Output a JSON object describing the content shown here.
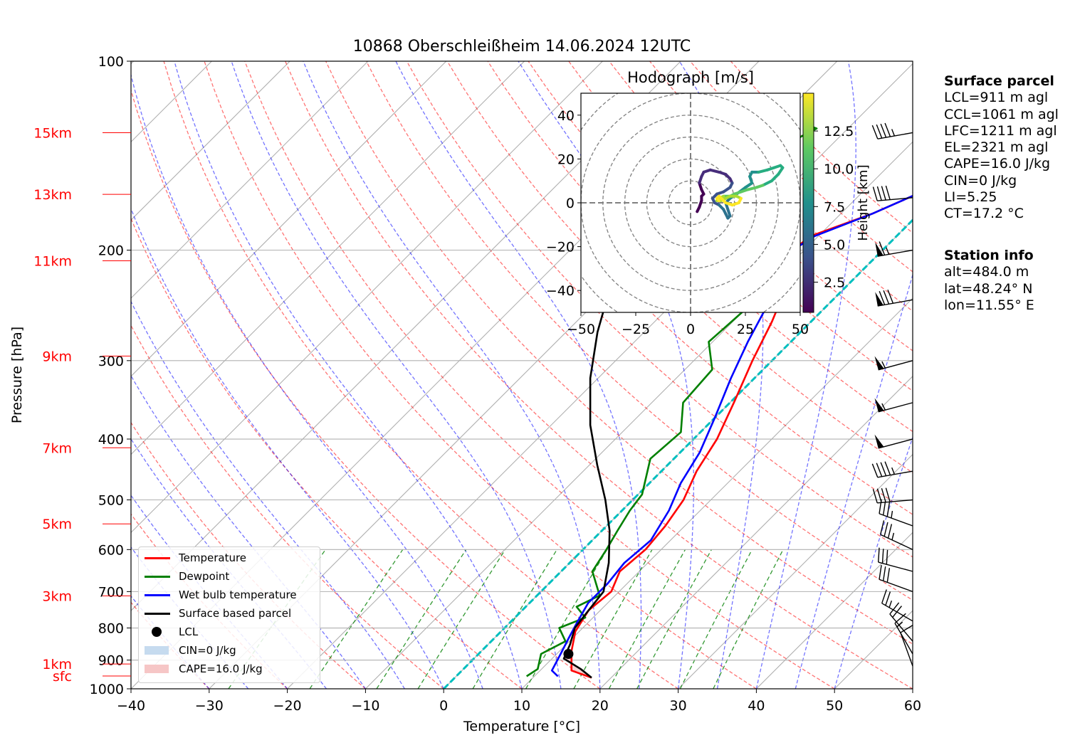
{
  "title": "10868 Oberschleißheim 14.06.2024 12UTC",
  "chart_data": {
    "type": "line",
    "xlabel": "Temperature [°C]",
    "ylabel": "Pressure [hPa]",
    "xlim": [
      -40,
      60
    ],
    "ylim": [
      1000,
      100
    ],
    "y_scale": "log",
    "x_ticks": [
      "−40",
      "−30",
      "−20",
      "−10",
      "0",
      "10",
      "20",
      "30",
      "40",
      "50",
      "60"
    ],
    "y_ticks": [
      {
        "p": 100,
        "label": "100"
      },
      {
        "p": 200,
        "label": "200"
      },
      {
        "p": 300,
        "label": "300"
      },
      {
        "p": 400,
        "label": "400"
      },
      {
        "p": 500,
        "label": "500"
      },
      {
        "p": 600,
        "label": "600"
      },
      {
        "p": 700,
        "label": "700"
      },
      {
        "p": 800,
        "label": "800"
      },
      {
        "p": 900,
        "label": "900"
      },
      {
        "p": 1000,
        "label": "1000"
      }
    ],
    "height_labels": [
      {
        "label": "15km",
        "p": 130
      },
      {
        "label": "13km",
        "p": 163
      },
      {
        "label": "11km",
        "p": 208
      },
      {
        "label": "9km",
        "p": 295
      },
      {
        "label": "7km",
        "p": 413
      },
      {
        "label": "5km",
        "p": 546
      },
      {
        "label": "3km",
        "p": 711
      },
      {
        "label": "1km",
        "p": 913
      },
      {
        "label": "sfc",
        "p": 954
      }
    ],
    "grid": true,
    "series": [
      {
        "name": "Temperature",
        "color": "#ff0000",
        "points": [
          [
            17.5,
            960
          ],
          [
            14,
            935
          ],
          [
            11.5,
            870
          ],
          [
            9.5,
            810
          ],
          [
            8.5,
            750
          ],
          [
            9,
            700
          ],
          [
            7.5,
            650
          ],
          [
            8,
            600
          ],
          [
            7.5,
            550
          ],
          [
            6.5,
            500
          ],
          [
            4.5,
            450
          ],
          [
            3,
            400
          ],
          [
            0.5,
            350
          ],
          [
            -2.5,
            300
          ],
          [
            -5,
            260
          ],
          [
            -7.5,
            230
          ],
          [
            -11.5,
            200
          ],
          [
            -11,
            190
          ],
          [
            -6,
            175
          ],
          [
            -2,
            160
          ],
          [
            2,
            145
          ],
          [
            4,
            138
          ],
          [
            5.5,
            133
          ],
          [
            6.5,
            128
          ],
          [
            8,
            120
          ]
        ]
      },
      {
        "name": "Dewpoint",
        "color": "#008000",
        "points": [
          [
            9,
            955
          ],
          [
            9.5,
            930
          ],
          [
            8,
            880
          ],
          [
            9.5,
            840
          ],
          [
            7,
            800
          ],
          [
            9,
            770
          ],
          [
            6.5,
            740
          ],
          [
            8,
            710
          ],
          [
            4,
            650
          ],
          [
            3,
            600
          ],
          [
            2,
            560
          ],
          [
            1,
            520
          ],
          [
            0.5,
            490
          ],
          [
            -3,
            430
          ],
          [
            -2.5,
            390
          ],
          [
            -6,
            350
          ],
          [
            -6.5,
            310
          ],
          [
            -10.5,
            280
          ],
          [
            -10,
            250
          ],
          [
            -13,
            225
          ],
          [
            -17,
            210
          ],
          [
            -18,
            200
          ],
          [
            -24,
            190
          ],
          [
            -28.5,
            175
          ],
          [
            -32,
            160
          ],
          [
            -30,
            150
          ],
          [
            -25,
            140
          ],
          [
            -25,
            132
          ],
          [
            -24,
            128
          ],
          [
            -25,
            127
          ]
        ]
      },
      {
        "name": "Wet bulb temperature",
        "color": "#0000ff",
        "points": [
          [
            13,
            955
          ],
          [
            11.5,
            935
          ],
          [
            10.5,
            880
          ],
          [
            9.5,
            830
          ],
          [
            8.5,
            780
          ],
          [
            7.5,
            730
          ],
          [
            7.5,
            680
          ],
          [
            7,
            630
          ],
          [
            7.5,
            580
          ],
          [
            6,
            520
          ],
          [
            4,
            470
          ],
          [
            2.5,
            420
          ],
          [
            0,
            370
          ],
          [
            -3,
            320
          ],
          [
            -5.5,
            280
          ],
          [
            -8,
            240
          ],
          [
            -11,
            215
          ],
          [
            -11.5,
            200
          ],
          [
            -10.5,
            190
          ],
          [
            -6,
            175
          ],
          [
            -2,
            160
          ],
          [
            2,
            145
          ],
          [
            4,
            138
          ],
          [
            5,
            133
          ],
          [
            6.5,
            128
          ],
          [
            7.5,
            120
          ]
        ]
      },
      {
        "name": "Surface based parcel",
        "color": "#000000",
        "points": [
          [
            17.5,
            960
          ],
          [
            15,
            930
          ],
          [
            11.5,
            895
          ],
          [
            10.5,
            850
          ],
          [
            9,
            800
          ],
          [
            8.5,
            750
          ],
          [
            8,
            700
          ],
          [
            5,
            630
          ],
          [
            1,
            560
          ],
          [
            -3.5,
            500
          ],
          [
            -9,
            440
          ],
          [
            -15,
            380
          ],
          [
            -21,
            320
          ],
          [
            -26,
            270
          ],
          [
            -30,
            230
          ],
          [
            -33,
            200
          ],
          [
            -35.5,
            180
          ],
          [
            -38.5,
            130
          ]
        ]
      }
    ],
    "lcl_point": [
      11.5,
      880
    ],
    "cin_label": "CIN=0 J/kg",
    "cape_label": "CAPE=16.0 J/kg",
    "dry_adiabat_color": "#ff0000",
    "moist_adiabat_color": "#0000ff",
    "mixing_ratio_color": "#008000",
    "isotherm_zero_color": "#00bfbf",
    "wind_barbs": [
      {
        "p": 130,
        "speed_kt": 45,
        "dir": 260
      },
      {
        "p": 165,
        "speed_kt": 40,
        "dir": 265
      },
      {
        "p": 200,
        "speed_kt": 65,
        "dir": 260
      },
      {
        "p": 240,
        "speed_kt": 80,
        "dir": 260
      },
      {
        "p": 300,
        "speed_kt": 55,
        "dir": 255
      },
      {
        "p": 350,
        "speed_kt": 55,
        "dir": 255
      },
      {
        "p": 400,
        "speed_kt": 50,
        "dir": 255
      },
      {
        "p": 450,
        "speed_kt": 45,
        "dir": 260
      },
      {
        "p": 500,
        "speed_kt": 40,
        "dir": 265
      },
      {
        "p": 550,
        "speed_kt": 35,
        "dir": 290
      },
      {
        "p": 600,
        "speed_kt": 35,
        "dir": 295
      },
      {
        "p": 650,
        "speed_kt": 30,
        "dir": 285
      },
      {
        "p": 700,
        "speed_kt": 30,
        "dir": 290
      },
      {
        "p": 780,
        "speed_kt": 25,
        "dir": 300
      },
      {
        "p": 840,
        "speed_kt": 20,
        "dir": 320
      },
      {
        "p": 880,
        "speed_kt": 15,
        "dir": 330
      },
      {
        "p": 920,
        "speed_kt": 10,
        "dir": 340
      }
    ],
    "hodograph": {
      "title": "Hodograph [m/s]",
      "xlim": [
        -50,
        50
      ],
      "ylim": [
        -50,
        50
      ],
      "x_ticks": [
        "−50",
        "−25",
        "0",
        "25",
        "50"
      ],
      "y_ticks": [
        "40",
        "20",
        "0",
        "−20",
        "−40"
      ],
      "colorbar_label": "Height [km]",
      "colorbar_ticks": [
        "2.5",
        "5.0",
        "7.5",
        "10.0",
        "12.5"
      ],
      "colorbar_range": [
        0.5,
        15
      ],
      "points": [
        [
          3,
          -4
        ],
        [
          4,
          -2
        ],
        [
          5,
          1
        ],
        [
          5,
          3
        ],
        [
          6,
          4
        ],
        [
          5,
          6
        ],
        [
          4,
          9
        ],
        [
          5,
          12
        ],
        [
          6,
          14
        ],
        [
          9,
          15
        ],
        [
          13,
          14
        ],
        [
          16,
          13
        ],
        [
          18,
          11
        ],
        [
          19,
          9
        ],
        [
          18,
          7
        ],
        [
          15,
          5
        ],
        [
          12,
          4
        ],
        [
          10,
          2
        ],
        [
          11,
          0
        ],
        [
          13,
          -1
        ],
        [
          15,
          -3
        ],
        [
          16,
          -5
        ],
        [
          17,
          -7
        ],
        [
          18,
          -6
        ],
        [
          17,
          -3
        ],
        [
          16,
          0
        ],
        [
          18,
          2
        ],
        [
          21,
          4
        ],
        [
          25,
          7
        ],
        [
          28,
          9
        ],
        [
          27,
          12
        ],
        [
          28,
          14
        ],
        [
          31,
          14
        ],
        [
          35,
          15
        ],
        [
          38,
          16
        ],
        [
          41,
          17
        ],
        [
          42,
          16
        ],
        [
          40,
          13
        ],
        [
          37,
          10
        ],
        [
          33,
          8
        ],
        [
          30,
          7
        ],
        [
          26,
          6
        ],
        [
          23,
          5
        ],
        [
          20,
          4
        ],
        [
          18,
          3
        ],
        [
          15,
          3
        ],
        [
          13,
          2
        ],
        [
          12,
          1
        ],
        [
          14,
          1
        ],
        [
          16,
          2
        ],
        [
          18,
          3
        ],
        [
          21,
          3
        ],
        [
          23,
          2
        ],
        [
          22,
          0
        ],
        [
          19,
          -1
        ],
        [
          16,
          0
        ],
        [
          14,
          2
        ],
        [
          13,
          3
        ],
        [
          12,
          2
        ],
        [
          13,
          1
        ]
      ]
    }
  },
  "legend": {
    "items": [
      {
        "label": "Temperature",
        "color": "#ff0000",
        "kind": "line"
      },
      {
        "label": "Dewpoint",
        "color": "#008000",
        "kind": "line"
      },
      {
        "label": "Wet bulb temperature",
        "color": "#0000ff",
        "kind": "line"
      },
      {
        "label": "Surface based parcel",
        "color": "#000000",
        "kind": "line"
      },
      {
        "label": "LCL",
        "color": "#000000",
        "kind": "dot"
      },
      {
        "label": "CIN=0 J/kg",
        "color": "#c6dbef",
        "kind": "patch"
      },
      {
        "label": "CAPE=16.0 J/kg",
        "color": "#f6c6c6",
        "kind": "patch"
      }
    ]
  },
  "surface_parcel": {
    "header": "Surface parcel",
    "lines": [
      "LCL=911 m agl",
      "CCL=1061 m agl",
      "LFC=1211 m agl",
      "EL=2321 m agl",
      "CAPE=16.0 J/kg",
      "CIN=0 J/kg",
      "LI=5.25",
      "CT=17.2 °C"
    ]
  },
  "station_info": {
    "header": "Station info",
    "lines": [
      "alt=484.0 m",
      "lat=48.24° N",
      "lon=11.55° E"
    ]
  }
}
